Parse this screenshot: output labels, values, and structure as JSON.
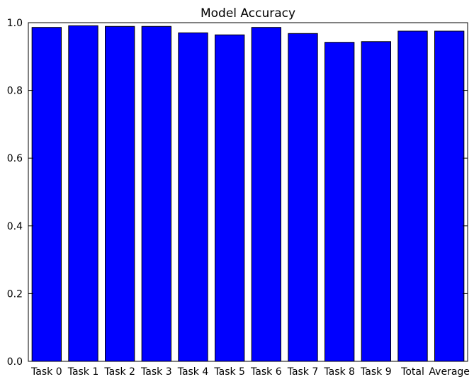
{
  "chart_data": {
    "type": "bar",
    "title": "Model Accuracy",
    "xlabel": "",
    "ylabel": "",
    "categories": [
      "Task 0",
      "Task 1",
      "Task 2",
      "Task 3",
      "Task 4",
      "Task 5",
      "Task 6",
      "Task 7",
      "Task 8",
      "Task 9",
      "Total",
      "Average"
    ],
    "values": [
      0.986,
      0.991,
      0.989,
      0.989,
      0.97,
      0.964,
      0.986,
      0.968,
      0.942,
      0.944,
      0.975,
      0.975
    ],
    "ylim": [
      0.0,
      1.0
    ],
    "yticks": [
      0.0,
      0.2,
      0.4,
      0.6,
      0.8,
      1.0
    ],
    "ytick_labels": [
      "0.0",
      "0.2",
      "0.4",
      "0.6",
      "0.8",
      "1.0"
    ],
    "grid": false,
    "legend": "none",
    "bar_color": "#0000ff",
    "edge_color": "#000000"
  }
}
